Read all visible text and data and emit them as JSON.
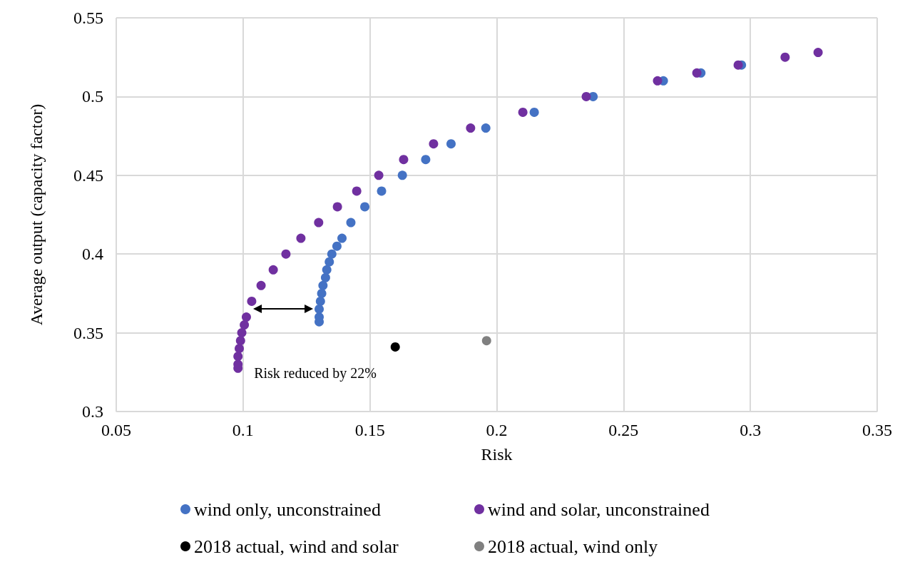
{
  "chart_data": {
    "type": "scatter",
    "xlabel": "Risk",
    "ylabel": "Average output (capacity factor)",
    "xlim": [
      0.05,
      0.35
    ],
    "xticks": [
      0.05,
      0.1,
      0.15,
      0.2,
      0.25,
      0.3,
      0.35
    ],
    "ylim": [
      0.3,
      0.55
    ],
    "yticks": [
      0.3,
      0.35,
      0.4,
      0.45,
      0.5,
      0.55
    ],
    "grid": true,
    "legend": "bottom",
    "marker": "circle",
    "annotations": [
      "Risk reduced by 22%"
    ],
    "series": [
      {
        "name": "wind only, unconstrained",
        "color": "#4472c4",
        "x": [
          0.13,
          0.13,
          0.13,
          0.1305,
          0.131,
          0.1315,
          0.1325,
          0.133,
          0.134,
          0.135,
          0.137,
          0.139,
          0.1425,
          0.148,
          0.1546,
          0.1628,
          0.172,
          0.182,
          0.1957,
          0.2148,
          0.238,
          0.2657,
          0.2805,
          0.2965
        ],
        "values": [
          0.357,
          0.36,
          0.365,
          0.37,
          0.375,
          0.38,
          0.385,
          0.39,
          0.395,
          0.4,
          0.405,
          0.41,
          0.42,
          0.43,
          0.44,
          0.45,
          0.46,
          0.47,
          0.48,
          0.49,
          0.5,
          0.51,
          0.515,
          0.52
        ]
      },
      {
        "name": "wind and solar, unconstrained",
        "color": "#7030a0",
        "x": [
          0.098,
          0.098,
          0.098,
          0.0985,
          0.099,
          0.0995,
          0.1005,
          0.1013,
          0.1034,
          0.1071,
          0.1119,
          0.1169,
          0.1228,
          0.1298,
          0.1372,
          0.1448,
          0.1535,
          0.1633,
          0.1751,
          0.1897,
          0.2103,
          0.2353,
          0.2634,
          0.2789,
          0.2952,
          0.3137,
          0.3267
        ],
        "values": [
          0.3275,
          0.33,
          0.335,
          0.34,
          0.345,
          0.35,
          0.355,
          0.36,
          0.37,
          0.38,
          0.39,
          0.4,
          0.41,
          0.42,
          0.43,
          0.44,
          0.45,
          0.46,
          0.47,
          0.48,
          0.49,
          0.5,
          0.51,
          0.515,
          0.52,
          0.525,
          0.528
        ]
      },
      {
        "name": "2018 actual, wind and solar",
        "color": "#000000",
        "x": [
          0.16
        ],
        "values": [
          0.341
        ]
      },
      {
        "name": "2018 actual, wind only",
        "color": "#808080",
        "x": [
          0.196
        ],
        "values": [
          0.345
        ]
      }
    ]
  }
}
